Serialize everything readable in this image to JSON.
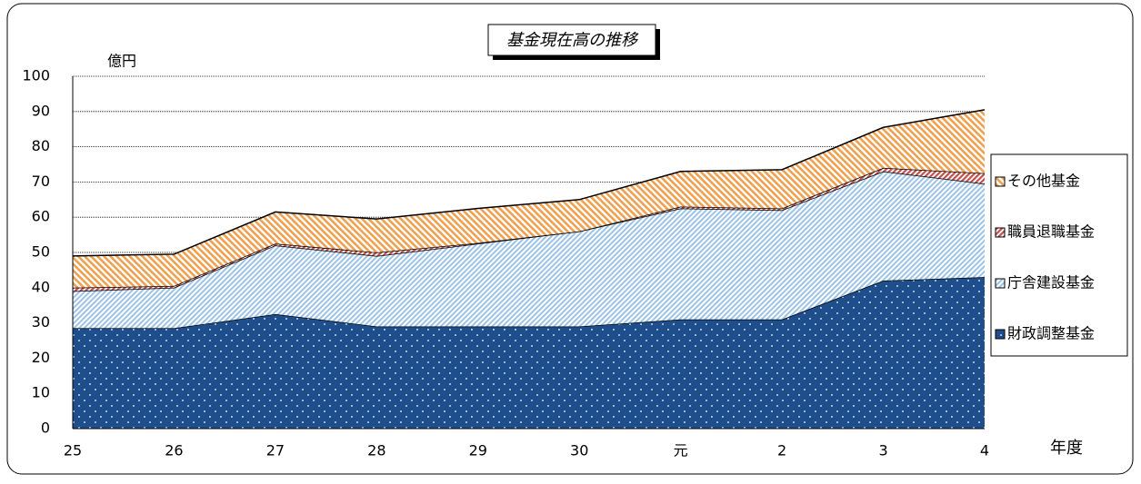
{
  "chart_data": {
    "type": "stacked-area",
    "title": "基金現在高の推移",
    "y_axis_label": "億円",
    "x_axis_label": "年度",
    "categories": [
      "25",
      "26",
      "27",
      "28",
      "29",
      "30",
      "元",
      "2",
      "3",
      "4"
    ],
    "series": [
      {
        "name": "財政調整基金",
        "color": "#1f4e8c",
        "values": [
          28.5,
          28.5,
          32.5,
          29,
          29,
          29,
          31,
          31,
          42,
          43
        ]
      },
      {
        "name": "庁舎建設基金",
        "color": "#9dc3e6",
        "values": [
          10.5,
          11.5,
          19.5,
          20,
          23.5,
          27,
          31.5,
          31,
          31,
          26.5
        ]
      },
      {
        "name": "職員退職基金",
        "color": "#c0504d",
        "values": [
          1,
          0.5,
          0.5,
          1,
          0.2,
          0,
          0.5,
          0.5,
          1,
          3
        ]
      },
      {
        "name": "その他基金",
        "color": "#f0a050",
        "values": [
          9,
          9,
          9,
          9.5,
          9.8,
          9,
          10,
          11,
          11.5,
          18
        ]
      }
    ],
    "ylim": [
      0,
      100
    ],
    "yticks": [
      0,
      10,
      20,
      30,
      40,
      50,
      60,
      70,
      80,
      90,
      100
    ],
    "grid": true,
    "legend": "right"
  }
}
